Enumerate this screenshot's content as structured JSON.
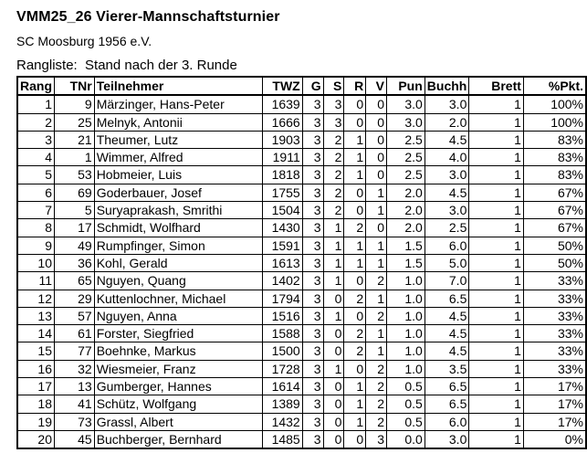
{
  "page": {
    "title": "VMM25_26 Vierer-Mannschaftsturnier",
    "subtitle": "SC Moosburg 1956 e.V.",
    "list_heading": "Rangliste:  Stand nach der 3. Runde"
  },
  "table": {
    "headers": [
      "Rang",
      "TNr",
      "Teilnehmer",
      "TWZ",
      "G",
      "S",
      "R",
      "V",
      "Pun",
      "Buchh",
      "Brett",
      "%Pkt."
    ],
    "col_keys": [
      "rang",
      "tnr",
      "teilnehmer",
      "twz",
      "g",
      "s",
      "r",
      "v",
      "punkte",
      "buchholz",
      "brett",
      "prozent-punkte"
    ],
    "rows": [
      [
        "1",
        "9",
        "Märzinger, Hans-Peter",
        "1639",
        "3",
        "3",
        "0",
        "0",
        "3.0",
        "3.0",
        "1",
        "100%"
      ],
      [
        "2",
        "25",
        "Melnyk, Antonii",
        "1666",
        "3",
        "3",
        "0",
        "0",
        "3.0",
        "2.0",
        "1",
        "100%"
      ],
      [
        "3",
        "21",
        "Theumer, Lutz",
        "1903",
        "3",
        "2",
        "1",
        "0",
        "2.5",
        "4.5",
        "1",
        "83%"
      ],
      [
        "4",
        "1",
        "Wimmer, Alfred",
        "1911",
        "3",
        "2",
        "1",
        "0",
        "2.5",
        "4.0",
        "1",
        "83%"
      ],
      [
        "5",
        "53",
        "Hobmeier, Luis",
        "1818",
        "3",
        "2",
        "1",
        "0",
        "2.5",
        "3.0",
        "1",
        "83%"
      ],
      [
        "6",
        "69",
        "Goderbauer, Josef",
        "1755",
        "3",
        "2",
        "0",
        "1",
        "2.0",
        "4.5",
        "1",
        "67%"
      ],
      [
        "7",
        "5",
        "Suryaprakash, Smrithi",
        "1504",
        "3",
        "2",
        "0",
        "1",
        "2.0",
        "3.0",
        "1",
        "67%"
      ],
      [
        "8",
        "17",
        "Schmidt, Wolfhard",
        "1430",
        "3",
        "1",
        "2",
        "0",
        "2.0",
        "2.5",
        "1",
        "67%"
      ],
      [
        "9",
        "49",
        "Rumpfinger, Simon",
        "1591",
        "3",
        "1",
        "1",
        "1",
        "1.5",
        "6.0",
        "1",
        "50%"
      ],
      [
        "10",
        "36",
        "Kohl, Gerald",
        "1613",
        "3",
        "1",
        "1",
        "1",
        "1.5",
        "5.0",
        "1",
        "50%"
      ],
      [
        "11",
        "65",
        "Nguyen, Quang",
        "1402",
        "3",
        "1",
        "0",
        "2",
        "1.0",
        "7.0",
        "1",
        "33%"
      ],
      [
        "12",
        "29",
        "Kuttenlochner, Michael",
        "1794",
        "3",
        "0",
        "2",
        "1",
        "1.0",
        "6.5",
        "1",
        "33%"
      ],
      [
        "13",
        "57",
        "Nguyen, Anna",
        "1516",
        "3",
        "1",
        "0",
        "2",
        "1.0",
        "4.5",
        "1",
        "33%"
      ],
      [
        "14",
        "61",
        "Forster, Siegfried",
        "1588",
        "3",
        "0",
        "2",
        "1",
        "1.0",
        "4.5",
        "1",
        "33%"
      ],
      [
        "15",
        "77",
        "Boehnke, Markus",
        "1500",
        "3",
        "0",
        "2",
        "1",
        "1.0",
        "4.5",
        "1",
        "33%"
      ],
      [
        "16",
        "32",
        "Wiesmeier, Franz",
        "1728",
        "3",
        "1",
        "0",
        "2",
        "1.0",
        "3.5",
        "1",
        "33%"
      ],
      [
        "17",
        "13",
        "Gumberger, Hannes",
        "1614",
        "3",
        "0",
        "1",
        "2",
        "0.5",
        "6.5",
        "1",
        "17%"
      ],
      [
        "18",
        "41",
        "Schütz, Wolfgang",
        "1389",
        "3",
        "0",
        "1",
        "2",
        "0.5",
        "6.5",
        "1",
        "17%"
      ],
      [
        "19",
        "73",
        "Grassl, Albert",
        "1432",
        "3",
        "0",
        "1",
        "2",
        "0.5",
        "6.0",
        "1",
        "17%"
      ],
      [
        "20",
        "45",
        "Buchberger, Bernhard",
        "1485",
        "3",
        "0",
        "0",
        "3",
        "0.0",
        "3.0",
        "1",
        "0%"
      ]
    ]
  }
}
